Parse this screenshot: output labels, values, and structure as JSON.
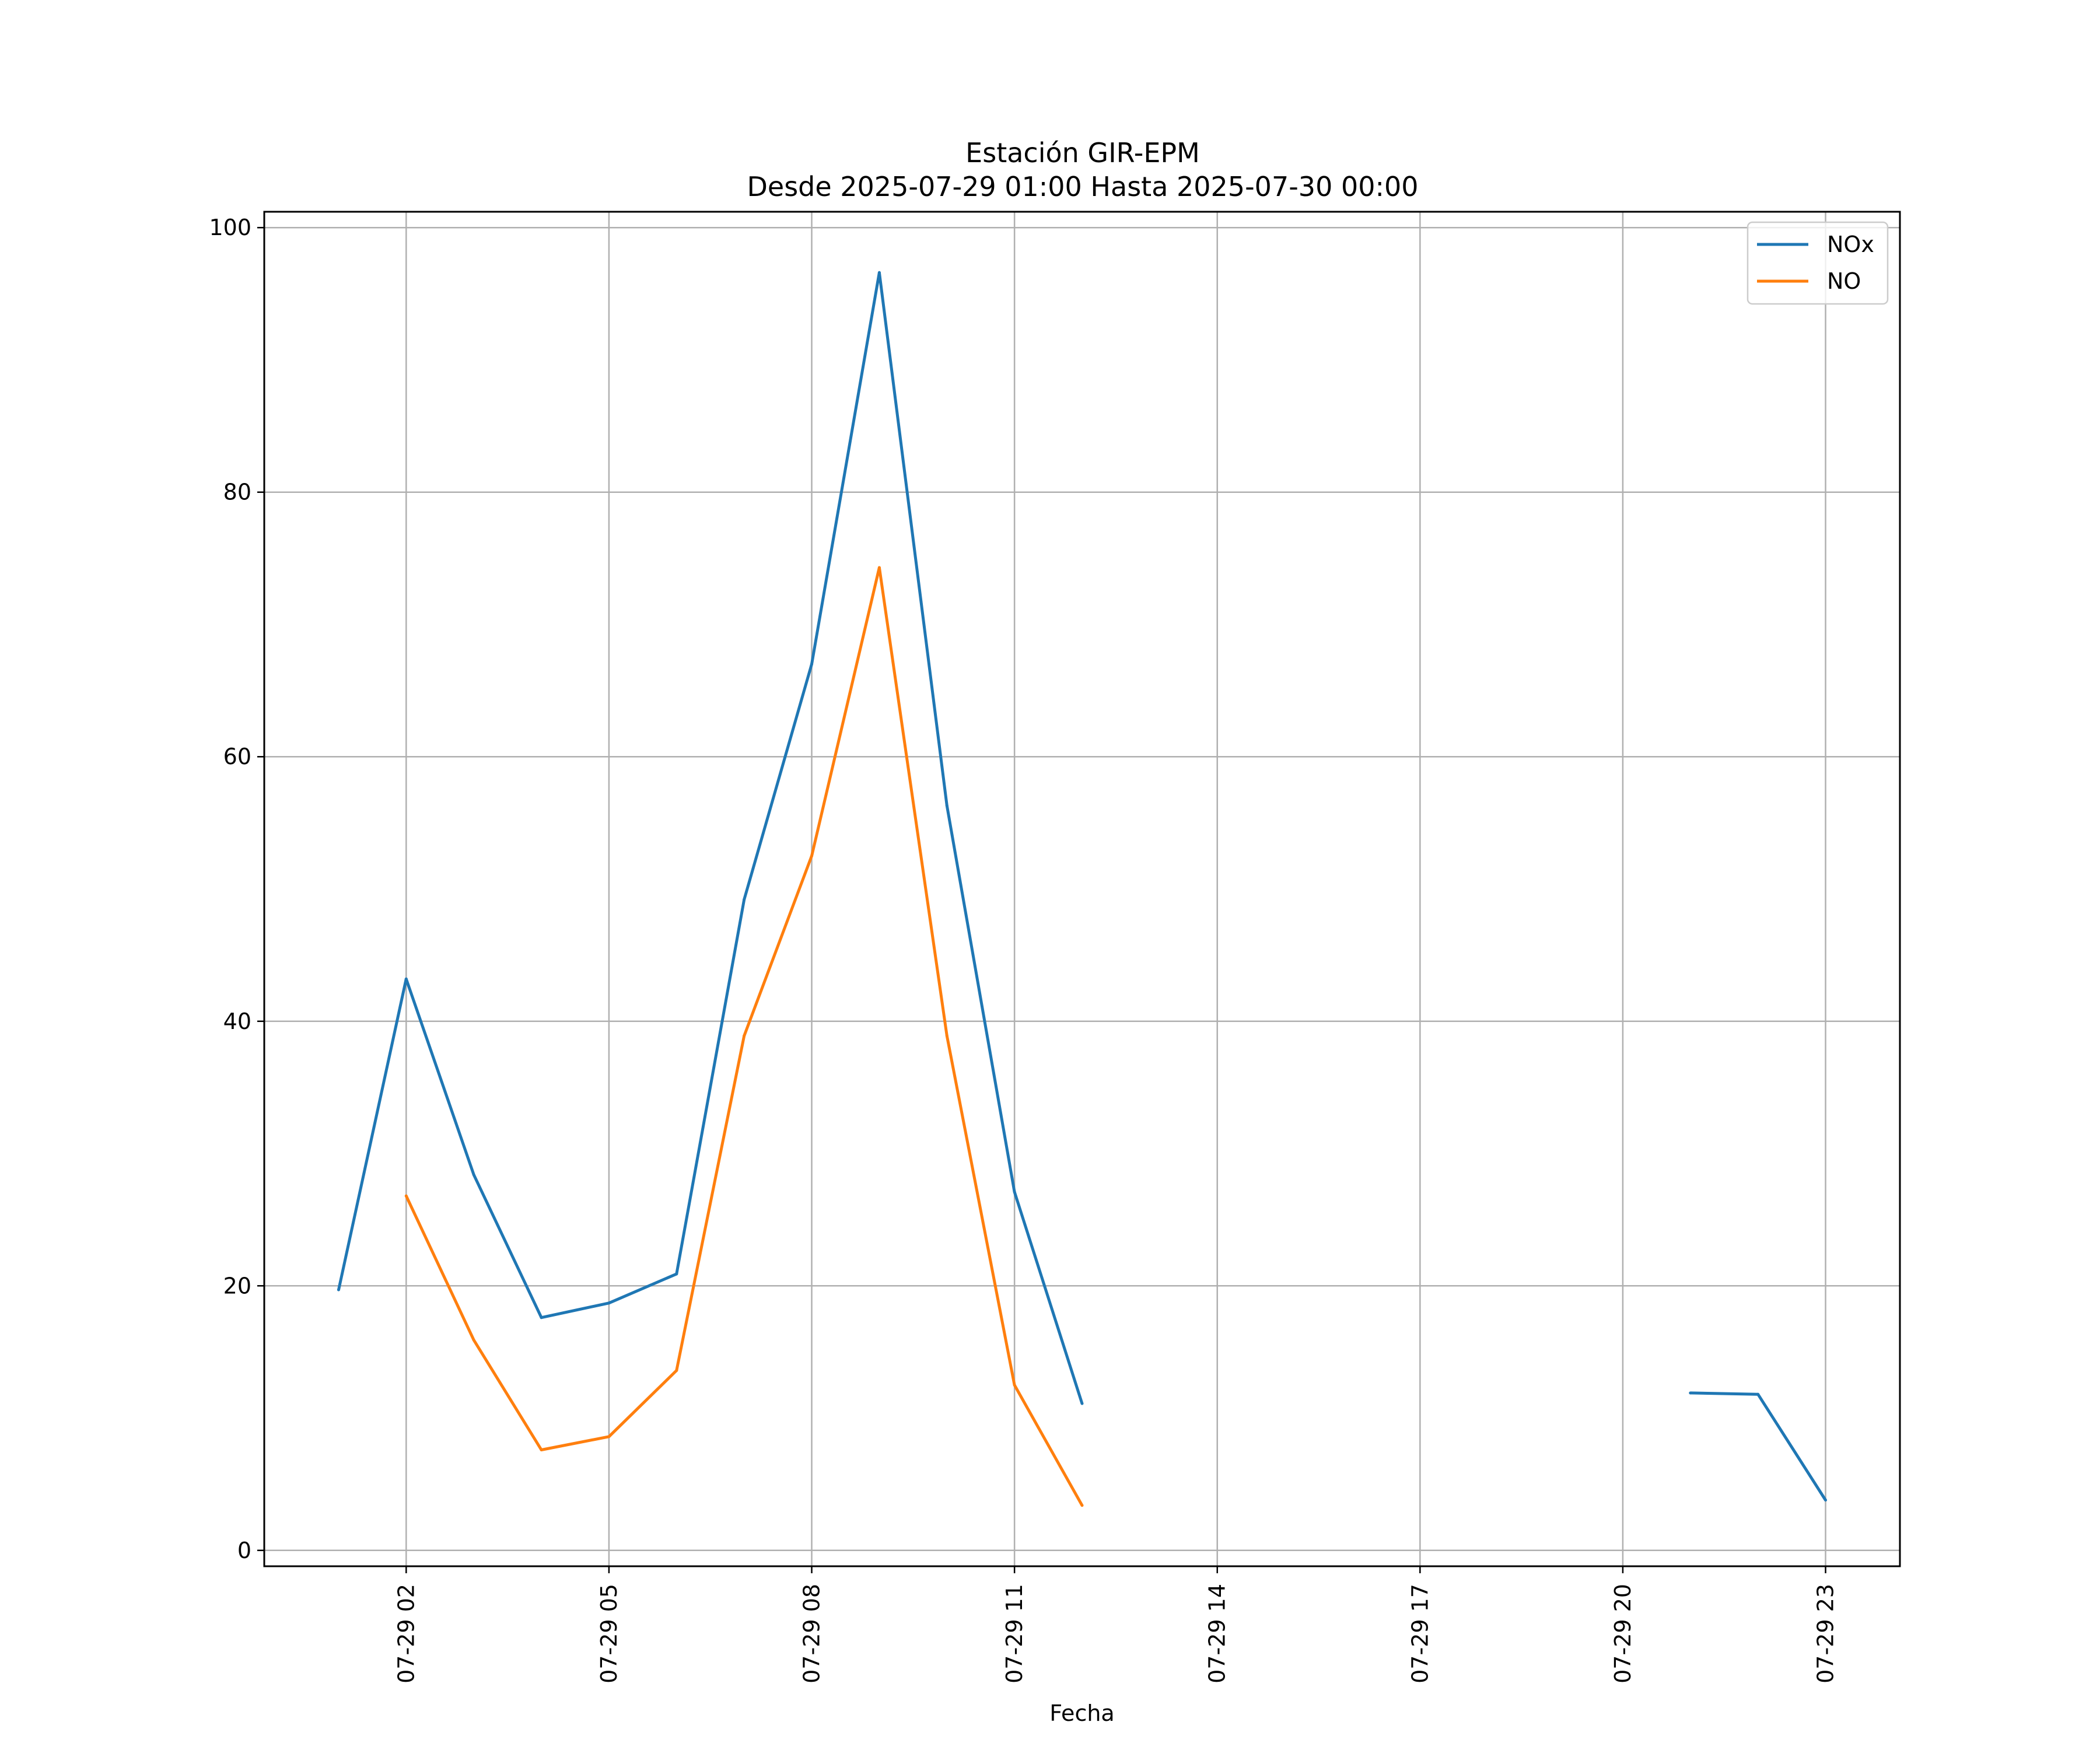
{
  "chart_data": {
    "type": "line",
    "title": "Estación GIR-EPM",
    "subtitle": "Desde 2025-07-29 01:00 Hasta 2025-07-30 00:00",
    "xlabel": "Fecha",
    "ylabel": "",
    "x": [
      "07-29 01",
      "07-29 02",
      "07-29 03",
      "07-29 04",
      "07-29 05",
      "07-29 06",
      "07-29 07",
      "07-29 08",
      "07-29 09",
      "07-29 10",
      "07-29 11",
      "07-29 12",
      "07-29 13",
      "07-29 14",
      "07-29 15",
      "07-29 16",
      "07-29 17",
      "07-29 18",
      "07-29 19",
      "07-29 20",
      "07-29 21",
      "07-29 22",
      "07-29 23"
    ],
    "x_ticks": [
      "07-29 02",
      "07-29 05",
      "07-29 08",
      "07-29 11",
      "07-29 14",
      "07-29 17",
      "07-29 20",
      "07-29 23"
    ],
    "y_ticks": [
      "0",
      "20",
      "40",
      "60",
      "80",
      "100"
    ],
    "ylim": [
      -1.2,
      101.2
    ],
    "grid": true,
    "legend_position": "upper-right",
    "series": [
      {
        "name": "NOx",
        "color": "#1f77b4",
        "values": [
          19.7,
          43.2,
          28.4,
          17.6,
          18.7,
          20.9,
          49.2,
          67.0,
          96.6,
          56.3,
          27.1,
          11.1,
          null,
          null,
          null,
          null,
          null,
          null,
          null,
          null,
          11.9,
          11.8,
          3.8
        ]
      },
      {
        "name": "NO",
        "color": "#ff7f0e",
        "values": [
          null,
          26.8,
          15.9,
          7.6,
          8.6,
          13.6,
          38.9,
          52.5,
          74.3,
          38.9,
          12.5,
          3.4,
          null,
          null,
          null,
          null,
          null,
          null,
          null,
          null,
          null,
          null,
          null
        ]
      }
    ]
  }
}
